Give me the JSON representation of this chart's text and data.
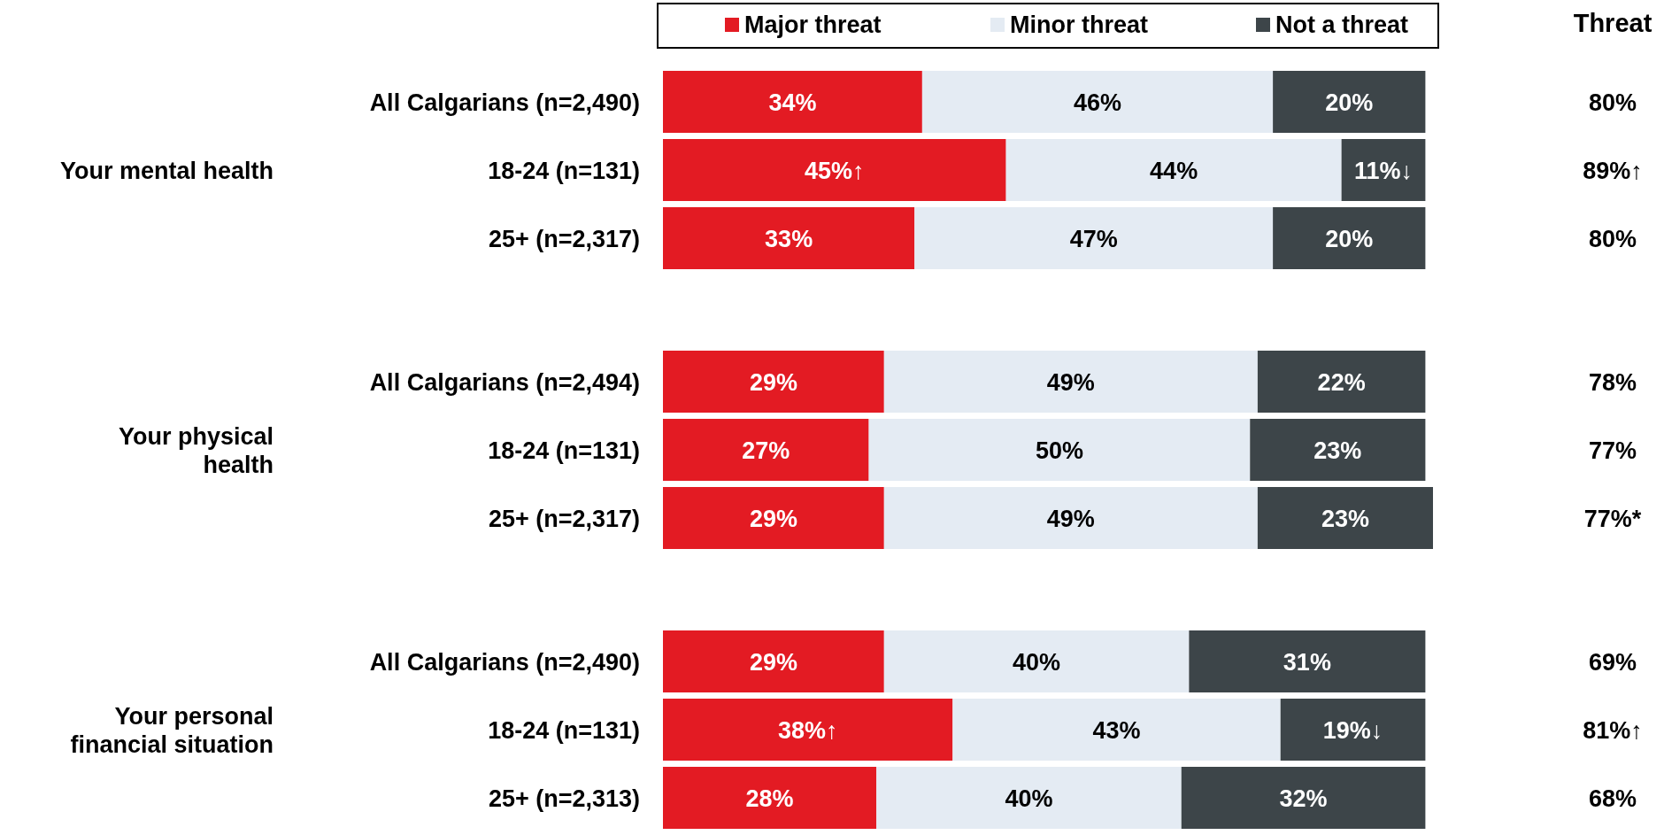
{
  "chart_data": {
    "type": "bar",
    "orientation": "horizontal",
    "stacked": true,
    "tick_labels": "y",
    "legend": "top",
    "data_labels": true,
    "categories": [
      "All Calgarians (n=2,490)",
      "18-24 (n=131)",
      "25+ (n=2,317)",
      "All Calgarians (n=2,494)",
      "18-24 (n=131)",
      "25+ (n=2,317)",
      "All Calgarians (n=2,490)",
      "18-24 (n=131)",
      "25+ (n=2,313)"
    ],
    "series": [
      {
        "name": "Major threat",
        "color": "#e31b23",
        "values": [
          34,
          45,
          33,
          29,
          27,
          29,
          29,
          38,
          28
        ],
        "value_labels": [
          "34%",
          "45%↑",
          "33%",
          "29%",
          "27%",
          "29%",
          "29%",
          "38%↑",
          "28%"
        ]
      },
      {
        "name": "Minor threat",
        "color": "#e4ebf3",
        "values": [
          46,
          44,
          47,
          49,
          50,
          49,
          40,
          43,
          40
        ],
        "value_labels": [
          "46%",
          "44%",
          "47%",
          "49%",
          "50%",
          "49%",
          "40%",
          "43%",
          "40%"
        ]
      },
      {
        "name": "Not a threat",
        "color": "#3d4549",
        "values": [
          20,
          11,
          20,
          22,
          23,
          23,
          31,
          19,
          32
        ],
        "value_labels": [
          "20%",
          "11%↓",
          "20%",
          "22%",
          "23%",
          "23%",
          "31%",
          "19%↓",
          "32%"
        ]
      }
    ],
    "annotations": [
      "Your mental health",
      "Your physical health",
      "Your personal financial situation",
      "Threat",
      "80%",
      "89%↑",
      "80%",
      "78%",
      "77%",
      "77%*",
      "69%",
      "81%↑",
      "68%"
    ]
  }
}
